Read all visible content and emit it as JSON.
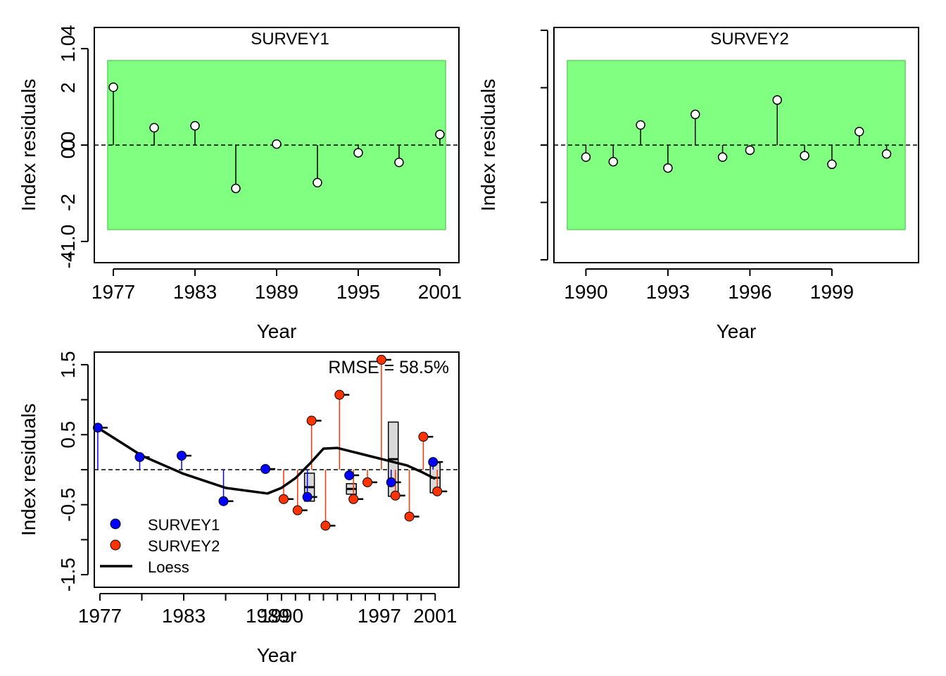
{
  "colors": {
    "band": "#80FF80",
    "band_edge": "#5FD35F",
    "survey1": "#0000FF",
    "survey2": "#FF3300",
    "box_fill": "#D9D9D9",
    "loess": "#000000"
  },
  "chart_data": [
    {
      "type": "scatter",
      "subtype": "lollipop",
      "title": "SURVEY1",
      "xlabel": "Year",
      "ylabel": "Index residuals",
      "xlim": [
        1975.6,
        2002.4
      ],
      "ylim": [
        -1.22,
        1.22
      ],
      "x_ticks": [
        1977,
        1983,
        1989,
        1995,
        2001
      ],
      "x_tick_labels": [
        "1977",
        "1983",
        "1989",
        "1995",
        "2001"
      ],
      "y_ticks": [
        -1.0,
        0.0,
        1.0
      ],
      "y_tick_labels": [
        "-1.0",
        "0.0",
        "1.0"
      ],
      "band": [
        -0.9,
        0.9
      ],
      "grid": false,
      "series": [
        {
          "x": [
            1977,
            1980,
            1983,
            1986,
            1989,
            1992,
            1995,
            1998,
            2001
          ],
          "values": [
            0.6,
            0.18,
            0.2,
            -0.45,
            0.01,
            -0.39,
            -0.08,
            -0.18,
            0.11
          ]
        }
      ]
    },
    {
      "type": "scatter",
      "subtype": "lollipop",
      "title": "SURVEY2",
      "xlabel": "Year",
      "ylabel": "Index residuals",
      "xlim": [
        1988.83,
        2002.17
      ],
      "ylim": [
        -4.1,
        4.1
      ],
      "x_ticks": [
        1990,
        1993,
        1996,
        1999
      ],
      "x_tick_labels": [
        "1990",
        "1993",
        "1996",
        "1999"
      ],
      "y_ticks": [
        -4,
        -2,
        0,
        2,
        4
      ],
      "y_tick_labels": [
        "-4",
        "-2",
        "0",
        "2",
        "4"
      ],
      "band": [
        -3.0,
        3.0
      ],
      "grid": false,
      "series": [
        {
          "x": [
            1990,
            1991,
            1992,
            1993,
            1994,
            1995,
            1996,
            1997,
            1998,
            1999,
            2000,
            2001
          ],
          "values": [
            -0.42,
            -0.58,
            0.7,
            -0.8,
            1.07,
            -0.42,
            -0.18,
            1.57,
            -0.37,
            -0.67,
            0.47,
            -0.31
          ]
        }
      ]
    },
    {
      "type": "scatter",
      "subtype": "joint-residuals",
      "xlabel": "Year",
      "ylabel": "Index residuals",
      "annotation": "RMSE = 58.5%",
      "xlim": [
        1976.6,
        2002.7
      ],
      "ylim": [
        -1.68,
        1.68
      ],
      "x_ticks": [
        1977,
        1980,
        1983,
        1986,
        1989,
        1990,
        1991,
        1992,
        1993,
        1994,
        1995,
        1996,
        1997,
        1998,
        1999,
        2000,
        2001
      ],
      "x_tick_labels": [
        "1977",
        "",
        "1983",
        "",
        "1989",
        "1990",
        "",
        "",
        "",
        "",
        "",
        "",
        "1997",
        "",
        "",
        "",
        "2001"
      ],
      "y_ticks": [
        -1.5,
        -1.0,
        -0.5,
        0.0,
        0.5,
        1.0,
        1.5
      ],
      "y_tick_labels": [
        "-1.5",
        "",
        "-0.5",
        "",
        "0.5",
        "",
        "1.5"
      ],
      "legend_position": "bottom-left",
      "legend": [
        "SURVEY1",
        "SURVEY2",
        "Loess"
      ],
      "grid": false,
      "series": [
        {
          "name": "SURVEY1",
          "x": [
            1977,
            1980,
            1983,
            1986,
            1989,
            1992,
            1995,
            1998,
            2001
          ],
          "values": [
            0.6,
            0.18,
            0.2,
            -0.45,
            0.01,
            -0.39,
            -0.08,
            -0.18,
            0.11
          ]
        },
        {
          "name": "SURVEY2",
          "x": [
            1990,
            1991,
            1992,
            1993,
            1994,
            1995,
            1996,
            1997,
            1998,
            1999,
            2000,
            2001
          ],
          "values": [
            -0.42,
            -0.58,
            0.7,
            -0.8,
            1.07,
            -0.42,
            -0.18,
            1.57,
            -0.37,
            -0.67,
            0.47,
            -0.31
          ]
        }
      ],
      "loess": {
        "x": [
          1977,
          1980,
          1983,
          1986,
          1989,
          1990,
          1991,
          1992,
          1993,
          1994,
          1995,
          1996,
          1997,
          1998,
          1999,
          2000,
          2001
        ],
        "values": [
          0.58,
          0.2,
          -0.06,
          -0.26,
          -0.34,
          -0.26,
          -0.12,
          0.08,
          0.3,
          0.31,
          0.26,
          0.21,
          0.16,
          0.11,
          0.06,
          -0.03,
          -0.13
        ]
      },
      "boxes": [
        {
          "year": 1992,
          "low": -0.45,
          "high": -0.05
        },
        {
          "year": 1995,
          "low": -0.35,
          "high": -0.2
        },
        {
          "year": 1998,
          "low": -0.38,
          "high": 0.68
        },
        {
          "year": 2001,
          "low": -0.33,
          "high": 0.1
        }
      ]
    }
  ]
}
